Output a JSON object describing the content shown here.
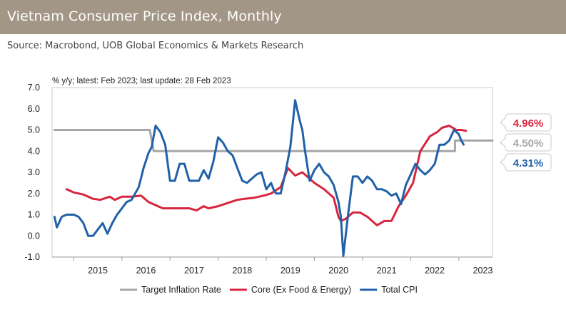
{
  "header": {
    "title": "Vietnam Consumer Price Index, Monthly",
    "source": "Source: Macrobond, UOB Global Economics & Markets Research"
  },
  "chart_data": {
    "type": "line",
    "subtitle": "% y/y; latest: Feb 2023; last update: 28 Feb 2023",
    "ylim": [
      -1.0,
      7.0
    ],
    "xlim": [
      2014.55,
      2023.7
    ],
    "yticks": [
      "7.0",
      "6.0",
      "5.0",
      "4.0",
      "3.0",
      "2.0",
      "1.0",
      "0.0",
      "-1.0"
    ],
    "ytick_values": [
      7,
      6,
      5,
      4,
      3,
      2,
      1,
      0,
      -1
    ],
    "xticks": [
      "2015",
      "2016",
      "2017",
      "2018",
      "2019",
      "2020",
      "2021",
      "2022",
      "2023"
    ],
    "xtick_values": [
      2015.5,
      2016.5,
      2017.5,
      2018.5,
      2019.5,
      2020.5,
      2021.5,
      2022.5,
      2023.5
    ],
    "legend_position": "bottom",
    "series": [
      {
        "name": "Target Inflation Rate",
        "color": "#a6a6a6",
        "x": [
          2014.6,
          2016.58,
          2016.66,
          2022.92,
          2022.92,
          2023.7
        ],
        "y": [
          5.0,
          5.0,
          4.0,
          4.0,
          4.5,
          4.5
        ]
      },
      {
        "name": "Core (Ex Food & Energy)",
        "color": "#d7263d",
        "x": [
          2014.85,
          2015.0,
          2015.2,
          2015.4,
          2015.55,
          2015.75,
          2015.85,
          2016.0,
          2016.2,
          2016.4,
          2016.55,
          2016.7,
          2016.85,
          2017.0,
          2017.2,
          2017.4,
          2017.55,
          2017.7,
          2017.8,
          2018.0,
          2018.2,
          2018.4,
          2018.55,
          2018.75,
          2018.95,
          2019.1,
          2019.3,
          2019.45,
          2019.6,
          2019.75,
          2019.9,
          2020.0,
          2020.2,
          2020.4,
          2020.5,
          2020.55,
          2020.65,
          2020.8,
          2020.95,
          2021.1,
          2021.3,
          2021.45,
          2021.6,
          2021.75,
          2021.9,
          2022.05,
          2022.2,
          2022.4,
          2022.55,
          2022.65,
          2022.8,
          2022.95,
          2023.05,
          2023.15
        ],
        "y": [
          2.2,
          2.05,
          1.95,
          1.75,
          1.7,
          1.85,
          1.7,
          1.85,
          1.85,
          1.9,
          1.6,
          1.45,
          1.3,
          1.3,
          1.3,
          1.3,
          1.2,
          1.4,
          1.3,
          1.4,
          1.55,
          1.7,
          1.75,
          1.8,
          1.9,
          2.0,
          2.3,
          3.2,
          2.85,
          3.0,
          2.7,
          2.5,
          2.2,
          1.8,
          0.9,
          0.7,
          0.8,
          1.1,
          1.1,
          0.9,
          0.5,
          0.7,
          0.7,
          1.4,
          1.9,
          2.5,
          4.0,
          4.7,
          4.9,
          5.1,
          5.2,
          5.0,
          5.0,
          4.96
        ],
        "latest": 4.96
      },
      {
        "name": "Total CPI",
        "color": "#2061a8",
        "x": [
          2014.6,
          2014.65,
          2014.75,
          2014.85,
          2015.0,
          2015.1,
          2015.2,
          2015.3,
          2015.4,
          2015.5,
          2015.6,
          2015.7,
          2015.8,
          2015.9,
          2016.0,
          2016.1,
          2016.2,
          2016.35,
          2016.45,
          2016.55,
          2016.62,
          2016.7,
          2016.8,
          2016.9,
          2017.0,
          2017.1,
          2017.2,
          2017.3,
          2017.4,
          2017.5,
          2017.6,
          2017.7,
          2017.8,
          2017.9,
          2018.0,
          2018.1,
          2018.2,
          2018.3,
          2018.4,
          2018.5,
          2018.6,
          2018.7,
          2018.8,
          2018.9,
          2019.0,
          2019.1,
          2019.15,
          2019.2,
          2019.3,
          2019.4,
          2019.5,
          2019.6,
          2019.7,
          2019.75,
          2019.8,
          2019.9,
          2020.0,
          2020.1,
          2020.2,
          2020.3,
          2020.4,
          2020.5,
          2020.55,
          2020.6,
          2020.7,
          2020.8,
          2020.9,
          2021.0,
          2021.1,
          2021.2,
          2021.3,
          2021.4,
          2021.5,
          2021.6,
          2021.7,
          2021.8,
          2021.9,
          2022.0,
          2022.1,
          2022.2,
          2022.3,
          2022.4,
          2022.5,
          2022.6,
          2022.7,
          2022.8,
          2022.9,
          2023.0,
          2023.05,
          2023.1
        ],
        "y": [
          0.9,
          0.4,
          0.9,
          1.0,
          1.0,
          0.9,
          0.6,
          0.0,
          0.0,
          0.3,
          0.6,
          0.1,
          0.6,
          1.0,
          1.3,
          1.6,
          1.7,
          2.3,
          3.2,
          3.9,
          4.2,
          5.2,
          4.9,
          4.3,
          2.6,
          2.6,
          3.4,
          3.4,
          2.6,
          2.6,
          2.6,
          3.1,
          2.7,
          3.5,
          4.65,
          4.4,
          4.0,
          3.8,
          3.2,
          2.6,
          2.5,
          2.7,
          2.9,
          3.0,
          2.2,
          2.5,
          2.2,
          2.0,
          2.0,
          3.0,
          4.2,
          6.4,
          5.4,
          5.0,
          4.1,
          2.6,
          3.1,
          3.4,
          3.0,
          2.8,
          2.4,
          1.6,
          0.9,
          -0.95,
          1.0,
          2.8,
          2.8,
          2.5,
          2.8,
          2.6,
          2.2,
          2.2,
          2.1,
          1.9,
          2.0,
          1.5,
          2.4,
          2.9,
          3.4,
          3.1,
          2.9,
          3.1,
          3.4,
          4.3,
          4.3,
          4.5,
          5.0,
          4.8,
          4.5,
          4.31
        ],
        "latest": 4.31
      }
    ],
    "callouts": [
      {
        "series": "Core (Ex Food & Energy)",
        "label": "4.96%",
        "value": 4.96,
        "color": "#d7263d"
      },
      {
        "series": "Target Inflation Rate",
        "label": "4.50%",
        "value": 4.5,
        "color": "#a6a6a6"
      },
      {
        "series": "Total CPI",
        "label": "4.31%",
        "value": 4.31,
        "color": "#2061a8"
      }
    ]
  }
}
